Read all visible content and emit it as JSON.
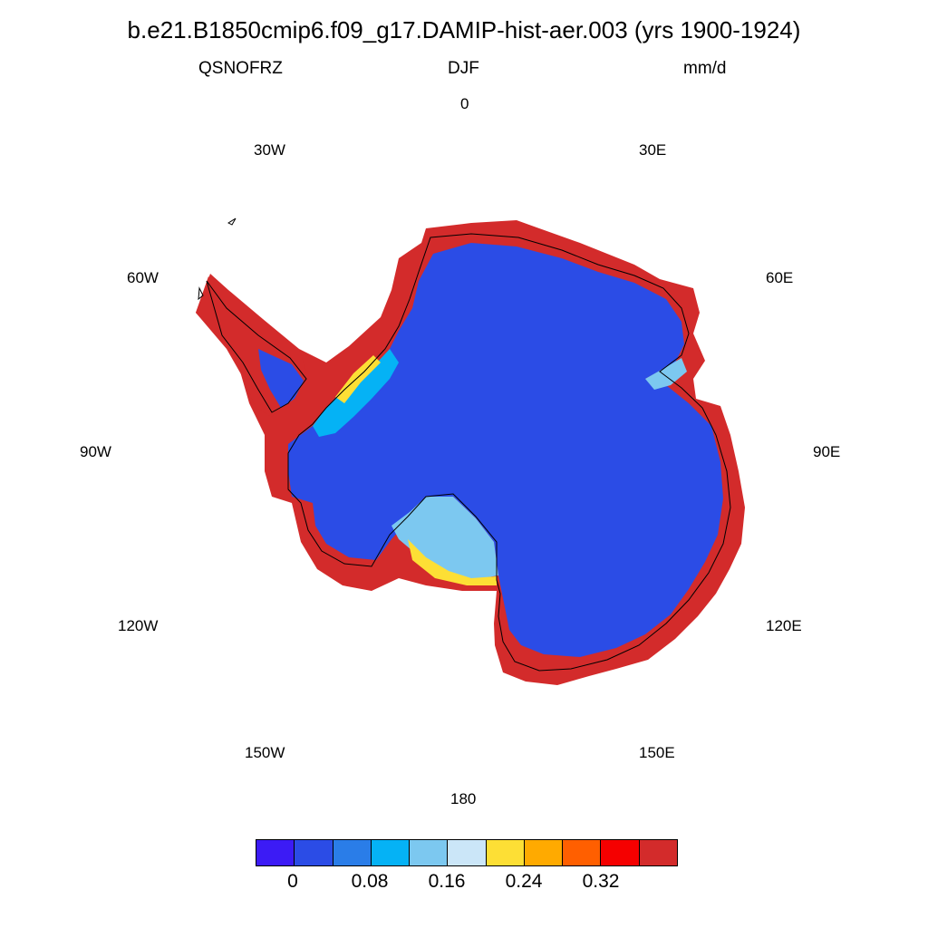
{
  "title": "b.e21.B1850cmip6.f09_g17.DAMIP-hist-aer.003 (yrs 1900-1924)",
  "variable": "QSNOFRZ",
  "season": "DJF",
  "units": "mm/d",
  "longitude_labels": [
    "0",
    "30E",
    "60E",
    "90E",
    "120E",
    "150E",
    "180",
    "150W",
    "120W",
    "90W",
    "60W",
    "30W"
  ],
  "colorbar": {
    "colors": [
      "#3c1bf5",
      "#2b4ce6",
      "#2a7de8",
      "#05b2f5",
      "#7cc8f0",
      "#cbe6f8",
      "#fddf35",
      "#ffaa00",
      "#ff5f00",
      "#f50000",
      "#d32b2b"
    ],
    "labels": [
      "0",
      "0.08",
      "0.16",
      "0.24",
      "0.32"
    ]
  },
  "colors": {
    "interior": "#2b4ce6",
    "coast_band": "#d32b2b",
    "coastline": "#000000"
  }
}
